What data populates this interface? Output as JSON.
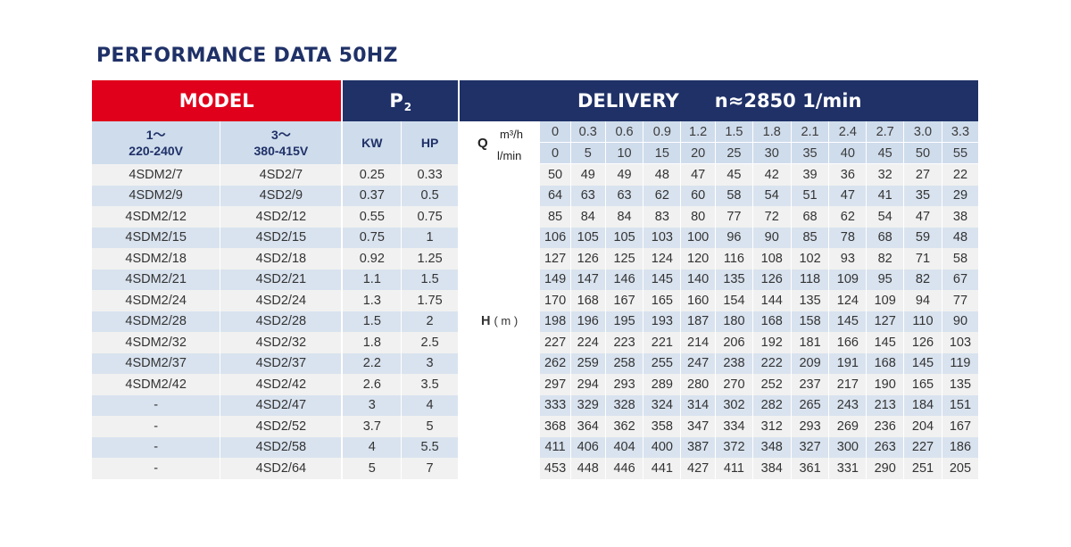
{
  "title": "PERFORMANCE DATA 50HZ",
  "header": {
    "model": "MODEL",
    "p2_main": "P",
    "p2_sub": "2",
    "delivery": "DELIVERY",
    "speed": "n≈2850 1/min"
  },
  "subheader": {
    "phase1_a": "1～",
    "phase1_b": "220-240V",
    "phase3_a": "3～",
    "phase3_b": "380-415V",
    "kw": "KW",
    "hp": "HP",
    "q_label": "Q",
    "q_unit_m3h": "m³/h",
    "q_unit_lmin": "l/min",
    "h_label": "H",
    "h_unit": "( m )"
  },
  "q_m3h": [
    "0",
    "0.3",
    "0.6",
    "0.9",
    "1.2",
    "1.5",
    "1.8",
    "2.1",
    "2.4",
    "2.7",
    "3.0",
    "3.3"
  ],
  "q_lmin": [
    "0",
    "5",
    "10",
    "15",
    "20",
    "25",
    "30",
    "35",
    "40",
    "45",
    "50",
    "55"
  ],
  "rows": [
    {
      "m1": "4SDM2/7",
      "m3": "4SD2/7",
      "kw": "0.25",
      "hp": "0.33",
      "h": [
        "50",
        "49",
        "49",
        "48",
        "47",
        "45",
        "42",
        "39",
        "36",
        "32",
        "27",
        "22"
      ]
    },
    {
      "m1": "4SDM2/9",
      "m3": "4SD2/9",
      "kw": "0.37",
      "hp": "0.5",
      "h": [
        "64",
        "63",
        "63",
        "62",
        "60",
        "58",
        "54",
        "51",
        "47",
        "41",
        "35",
        "29"
      ]
    },
    {
      "m1": "4SDM2/12",
      "m3": "4SD2/12",
      "kw": "0.55",
      "hp": "0.75",
      "h": [
        "85",
        "84",
        "84",
        "83",
        "80",
        "77",
        "72",
        "68",
        "62",
        "54",
        "47",
        "38"
      ]
    },
    {
      "m1": "4SDM2/15",
      "m3": "4SD2/15",
      "kw": "0.75",
      "hp": "1",
      "h": [
        "106",
        "105",
        "105",
        "103",
        "100",
        "96",
        "90",
        "85",
        "78",
        "68",
        "59",
        "48"
      ]
    },
    {
      "m1": "4SDM2/18",
      "m3": "4SD2/18",
      "kw": "0.92",
      "hp": "1.25",
      "h": [
        "127",
        "126",
        "125",
        "124",
        "120",
        "116",
        "108",
        "102",
        "93",
        "82",
        "71",
        "58"
      ]
    },
    {
      "m1": "4SDM2/21",
      "m3": "4SD2/21",
      "kw": "1.1",
      "hp": "1.5",
      "h": [
        "149",
        "147",
        "146",
        "145",
        "140",
        "135",
        "126",
        "118",
        "109",
        "95",
        "82",
        "67"
      ]
    },
    {
      "m1": "4SDM2/24",
      "m3": "4SD2/24",
      "kw": "1.3",
      "hp": "1.75",
      "h": [
        "170",
        "168",
        "167",
        "165",
        "160",
        "154",
        "144",
        "135",
        "124",
        "109",
        "94",
        "77"
      ]
    },
    {
      "m1": "4SDM2/28",
      "m3": "4SD2/28",
      "kw": "1.5",
      "hp": "2",
      "h": [
        "198",
        "196",
        "195",
        "193",
        "187",
        "180",
        "168",
        "158",
        "145",
        "127",
        "110",
        "90"
      ]
    },
    {
      "m1": "4SDM2/32",
      "m3": "4SD2/32",
      "kw": "1.8",
      "hp": "2.5",
      "h": [
        "227",
        "224",
        "223",
        "221",
        "214",
        "206",
        "192",
        "181",
        "166",
        "145",
        "126",
        "103"
      ]
    },
    {
      "m1": "4SDM2/37",
      "m3": "4SD2/37",
      "kw": "2.2",
      "hp": "3",
      "h": [
        "262",
        "259",
        "258",
        "255",
        "247",
        "238",
        "222",
        "209",
        "191",
        "168",
        "145",
        "119"
      ]
    },
    {
      "m1": "4SDM2/42",
      "m3": "4SD2/42",
      "kw": "2.6",
      "hp": "3.5",
      "h": [
        "297",
        "294",
        "293",
        "289",
        "280",
        "270",
        "252",
        "237",
        "217",
        "190",
        "165",
        "135"
      ]
    },
    {
      "m1": "-",
      "m3": "4SD2/47",
      "kw": "3",
      "hp": "4",
      "h": [
        "333",
        "329",
        "328",
        "324",
        "314",
        "302",
        "282",
        "265",
        "243",
        "213",
        "184",
        "151"
      ]
    },
    {
      "m1": "-",
      "m3": "4SD2/52",
      "kw": "3.7",
      "hp": "5",
      "h": [
        "368",
        "364",
        "362",
        "358",
        "347",
        "334",
        "312",
        "293",
        "269",
        "236",
        "204",
        "167"
      ]
    },
    {
      "m1": "-",
      "m3": "4SD2/58",
      "kw": "4",
      "hp": "5.5",
      "h": [
        "411",
        "406",
        "404",
        "400",
        "387",
        "372",
        "348",
        "327",
        "300",
        "263",
        "227",
        "186"
      ]
    },
    {
      "m1": "-",
      "m3": "4SD2/64",
      "kw": "5",
      "hp": "7",
      "h": [
        "453",
        "448",
        "446",
        "441",
        "427",
        "411",
        "384",
        "361",
        "331",
        "290",
        "251",
        "205"
      ]
    }
  ]
}
